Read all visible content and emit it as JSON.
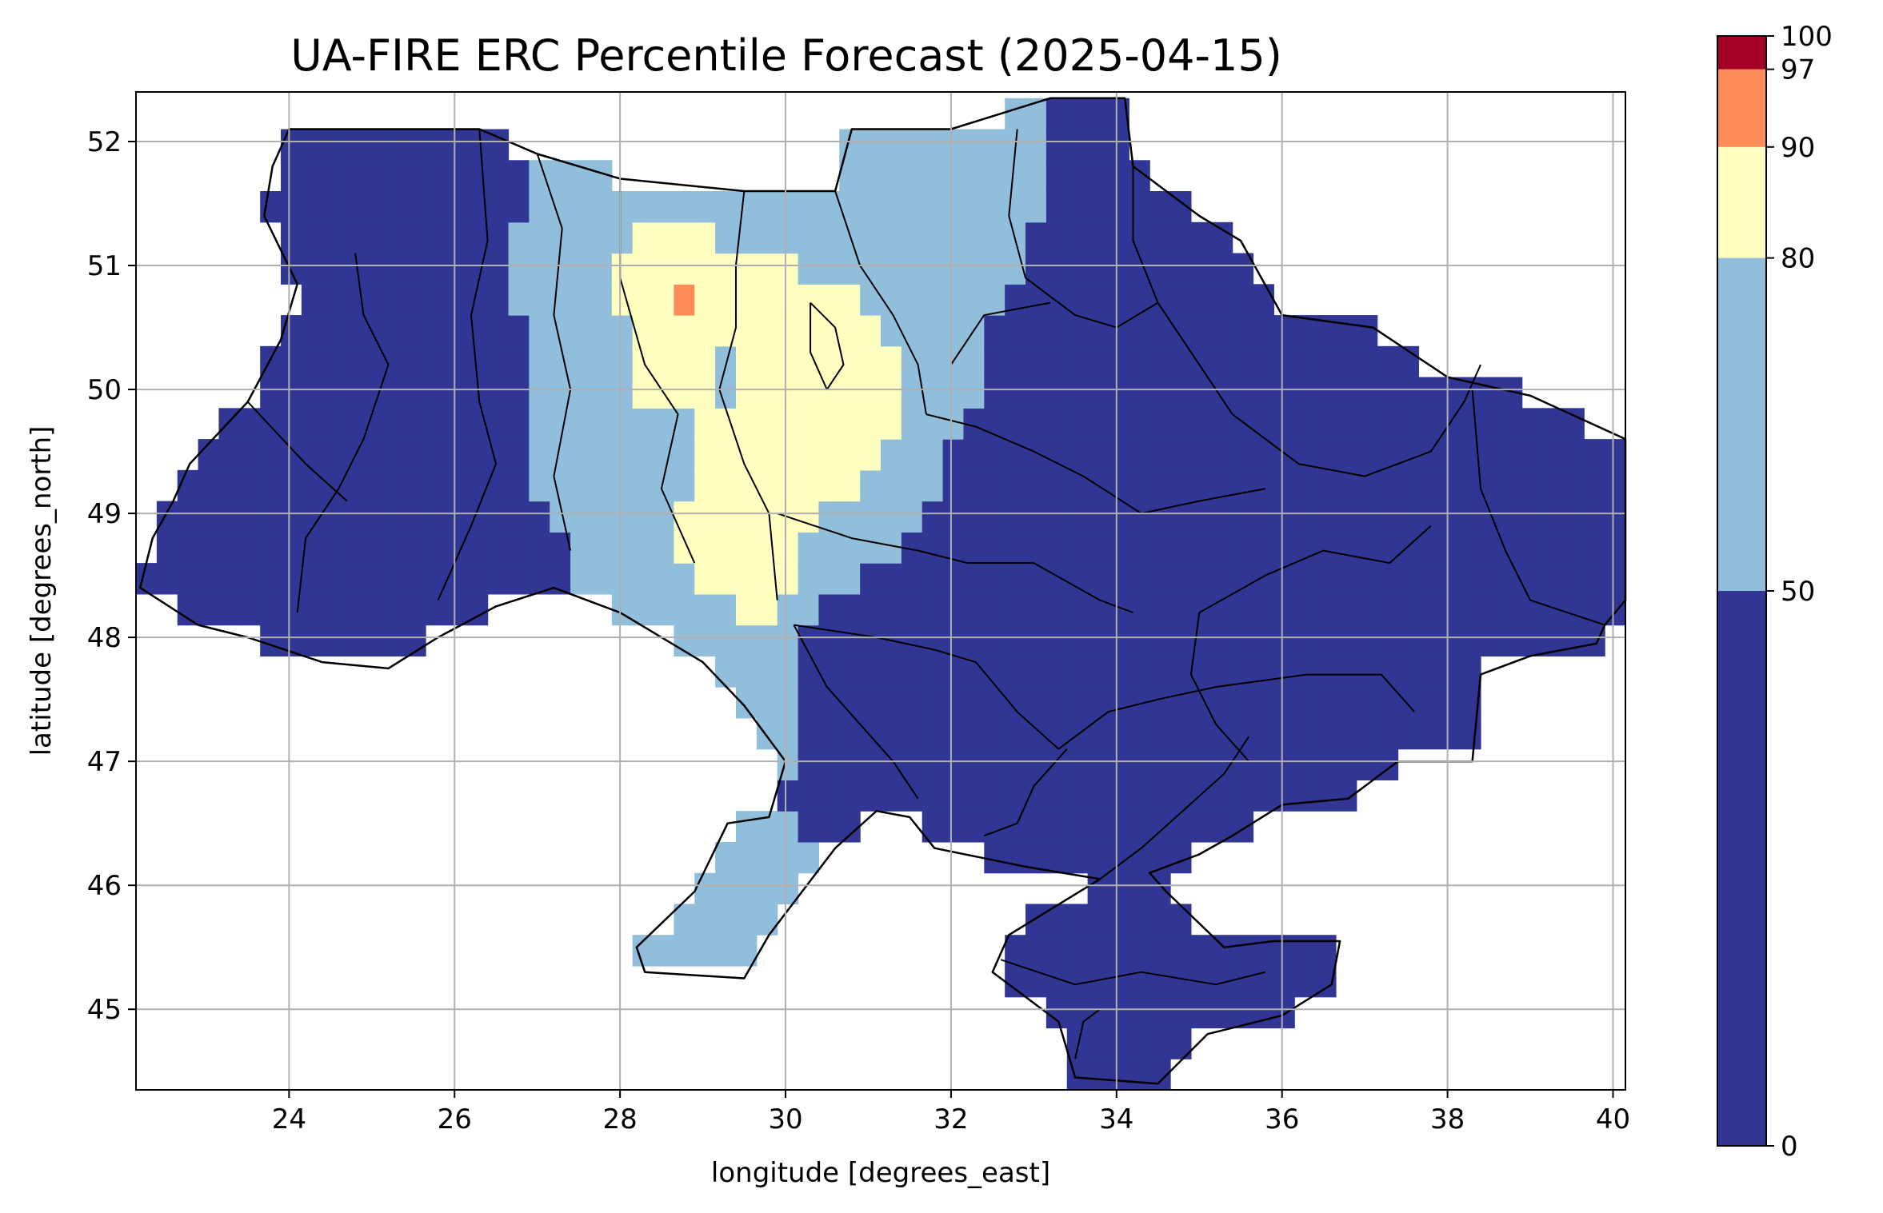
{
  "chart_data": {
    "type": "heatmap",
    "title": "UA-FIRE ERC Percentile Forecast (2025-04-15)",
    "xlabel": "longitude [degrees_east]",
    "ylabel": "latitude [degrees_north]",
    "xlim": [
      22.15,
      40.15
    ],
    "ylim": [
      44.35,
      52.4
    ],
    "xticks": [
      24,
      26,
      28,
      30,
      32,
      34,
      36,
      38,
      40
    ],
    "yticks": [
      45,
      46,
      47,
      48,
      49,
      50,
      51,
      52
    ],
    "grid": true,
    "colorbar": {
      "location": "right",
      "boundaries": [
        0,
        50,
        80,
        90,
        97,
        100
      ],
      "tick_labels": [
        "0",
        "50",
        "80",
        "90",
        "97",
        "100"
      ],
      "colors": [
        "#313695",
        "#91bfdb",
        "#ffffbf",
        "#fc8d59",
        "#a50026"
      ]
    },
    "approx_regions": {
      "dark_blue_below_50": "western Ukraine, southern and eastern Ukraine, Crimea",
      "light_blue_50_80": "central-north belt and Odesa corridor",
      "yellow_80_90": "central Ukraine around 28-31.5E, 48-51.3N",
      "orange_90_97": "single cell near 28.7E, 50.8N"
    }
  }
}
